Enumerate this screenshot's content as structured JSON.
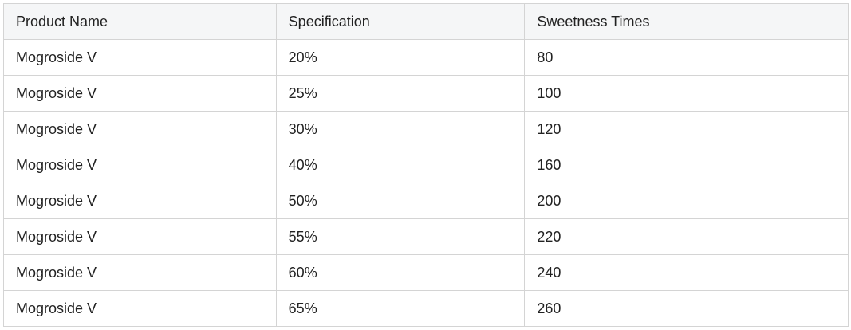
{
  "table": {
    "headers": [
      "Product Name",
      "Specification",
      "Sweetness Times"
    ],
    "rows": [
      [
        "Mogroside V",
        "20%",
        "80"
      ],
      [
        "Mogroside V",
        "25%",
        "100"
      ],
      [
        "Mogroside V",
        "30%",
        "120"
      ],
      [
        "Mogroside V",
        "40%",
        "160"
      ],
      [
        "Mogroside V",
        "50%",
        "200"
      ],
      [
        "Mogroside V",
        "55%",
        "220"
      ],
      [
        "Mogroside V",
        "60%",
        "240"
      ],
      [
        "Mogroside V",
        "65%",
        "260"
      ]
    ]
  }
}
